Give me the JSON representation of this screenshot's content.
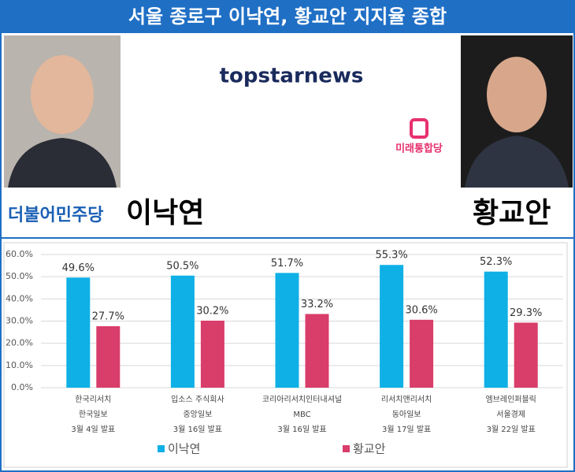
{
  "header": {
    "title": "서울 종로구 이낙연, 황교안 지지율 종합",
    "logo": "topstarnews",
    "left_party": "더불어민주당",
    "left_name": "이낙연",
    "right_party": "미래통합당",
    "right_name": "황교안"
  },
  "chart_data": {
    "type": "bar",
    "categories": [
      [
        "한국리서치",
        "한국일보",
        "3월 4일 발표"
      ],
      [
        "입소스 주식회사",
        "중앙일보",
        "3월 16일 발표"
      ],
      [
        "코리아리서치인터내셔널",
        "MBC",
        "3월 16일 발표"
      ],
      [
        "리서치앤리서치",
        "동아일보",
        "3월 17일 발표"
      ],
      [
        "엠브레인퍼블릭",
        "서울경제",
        "3월 22일 발표"
      ]
    ],
    "series": [
      {
        "name": "이낙연",
        "color": "#0fb0e6",
        "values": [
          49.6,
          50.5,
          51.7,
          55.3,
          52.3
        ],
        "value_labels": [
          "49.6%",
          "50.5%",
          "51.7%",
          "55.3%",
          "52.3%"
        ]
      },
      {
        "name": "황교안",
        "color": "#d93d6a",
        "values": [
          27.7,
          30.2,
          33.2,
          30.6,
          29.3
        ],
        "value_labels": [
          "27.7%",
          "30.2%",
          "33.2%",
          "30.6%",
          "29.3%"
        ]
      }
    ],
    "ylim": [
      0,
      60
    ],
    "yticks": [
      {
        "value": 0,
        "label": "0.0%"
      },
      {
        "value": 10,
        "label": "10.0%"
      },
      {
        "value": 20,
        "label": "20.0%"
      },
      {
        "value": 30,
        "label": "30.0%"
      },
      {
        "value": 40,
        "label": "40.0%"
      },
      {
        "value": 50,
        "label": "50.0%"
      },
      {
        "value": 60,
        "label": "60.0%"
      }
    ],
    "grid": true
  }
}
